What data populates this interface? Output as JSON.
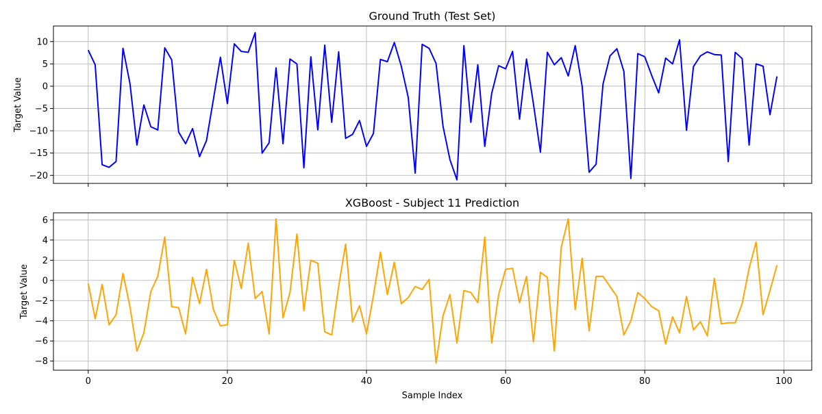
{
  "chart_data": [
    {
      "type": "line",
      "title": "Ground Truth (Test Set)",
      "xlabel": "",
      "ylabel": "Target Value",
      "xlim": [
        -5,
        104
      ],
      "ylim": [
        -21.8,
        13.5
      ],
      "xticks": [
        0,
        20,
        40,
        60,
        80,
        100
      ],
      "xtick_labels_visible": false,
      "yticks": [
        10,
        5,
        0,
        -5,
        -10,
        -15,
        -20
      ],
      "ytick_labels": [
        "10",
        "5",
        "0",
        "−5",
        "−10",
        "−15",
        "−20"
      ],
      "grid": true,
      "color": "#0000ff",
      "x": [
        0,
        1,
        2,
        3,
        4,
        5,
        6,
        7,
        8,
        9,
        10,
        11,
        12,
        13,
        14,
        15,
        16,
        17,
        18,
        19,
        20,
        21,
        22,
        23,
        24,
        25,
        26,
        27,
        28,
        29,
        30,
        31,
        32,
        33,
        34,
        35,
        36,
        37,
        38,
        39,
        40,
        41,
        42,
        43,
        44,
        45,
        46,
        47,
        48,
        49,
        50,
        51,
        52,
        53,
        54,
        55,
        56,
        57,
        58,
        59,
        60,
        61,
        62,
        63,
        64,
        65,
        66,
        67,
        68,
        69,
        70,
        71,
        72,
        73,
        74,
        75,
        76,
        77,
        78,
        79,
        80,
        81,
        82,
        83,
        84,
        85,
        86,
        87,
        88,
        89,
        90,
        91,
        92,
        93,
        94,
        95,
        96,
        97,
        98,
        99
      ],
      "values": [
        8.1,
        4.8,
        -17.6,
        -18.2,
        -16.9,
        8.5,
        0.6,
        -13.2,
        -4.2,
        -9.1,
        -9.8,
        8.6,
        5.9,
        -10.3,
        -12.9,
        -9.5,
        -15.8,
        -12.2,
        -2.9,
        6.5,
        -3.9,
        9.5,
        7.8,
        7.6,
        12.0,
        -15.0,
        -12.7,
        4.1,
        -12.9,
        6.1,
        5.0,
        -18.3,
        6.6,
        -9.8,
        9.2,
        -8.1,
        7.7,
        -11.7,
        -10.8,
        -7.7,
        -13.5,
        -10.6,
        6.0,
        5.5,
        9.8,
        4.5,
        -2.5,
        -19.5,
        9.4,
        8.5,
        5.1,
        -9.0,
        -16.5,
        -21.0,
        9.1,
        -8.1,
        4.8,
        -13.5,
        -1.6,
        4.6,
        3.9,
        7.8,
        -7.4,
        6.1,
        -4.0,
        -14.8,
        7.6,
        4.8,
        6.4,
        2.3,
        9.1,
        0.0,
        -19.3,
        -17.5,
        0.5,
        6.8,
        8.4,
        3.3,
        -20.7,
        7.3,
        6.6,
        2.4,
        -1.5,
        6.3,
        5.0,
        10.4,
        -9.9,
        4.4,
        6.8,
        7.7,
        7.1,
        7.0,
        -16.9,
        7.6,
        6.2,
        -13.2,
        5.0,
        4.5,
        -6.4,
        2.2
      ]
    },
    {
      "type": "line",
      "title": "XGBoost - Subject 11 Prediction",
      "xlabel": "Sample Index",
      "ylabel": "Target Value",
      "xlim": [
        -5,
        104
      ],
      "ylim": [
        -8.9,
        6.7
      ],
      "xticks": [
        0,
        20,
        40,
        60,
        80,
        100
      ],
      "xtick_labels": [
        "0",
        "20",
        "40",
        "60",
        "80",
        "100"
      ],
      "yticks": [
        6,
        4,
        2,
        0,
        -2,
        -4,
        -6,
        -8
      ],
      "ytick_labels": [
        "6",
        "4",
        "2",
        "0",
        "−2",
        "−4",
        "−6",
        "−8"
      ],
      "grid": true,
      "color": "#ffa500",
      "x": [
        0,
        1,
        2,
        3,
        4,
        5,
        6,
        7,
        8,
        9,
        10,
        11,
        12,
        13,
        14,
        15,
        16,
        17,
        18,
        19,
        20,
        21,
        22,
        23,
        24,
        25,
        26,
        27,
        28,
        29,
        30,
        31,
        32,
        33,
        34,
        35,
        36,
        37,
        38,
        39,
        40,
        41,
        42,
        43,
        44,
        45,
        46,
        47,
        48,
        49,
        50,
        51,
        52,
        53,
        54,
        55,
        56,
        57,
        58,
        59,
        60,
        61,
        62,
        63,
        64,
        65,
        66,
        67,
        68,
        69,
        70,
        71,
        72,
        73,
        74,
        75,
        76,
        77,
        78,
        79,
        80,
        81,
        82,
        83,
        84,
        85,
        86,
        87,
        88,
        89,
        90,
        91,
        92,
        93,
        94,
        95,
        96,
        97,
        98,
        99
      ],
      "values": [
        -0.3,
        -3.8,
        -0.4,
        -4.4,
        -3.4,
        0.7,
        -2.6,
        -7.0,
        -5.2,
        -1.1,
        0.4,
        4.3,
        -2.6,
        -2.7,
        -5.3,
        0.3,
        -2.3,
        1.1,
        -2.9,
        -4.5,
        -4.4,
        2.0,
        -0.8,
        3.7,
        -1.8,
        -1.1,
        -5.3,
        6.1,
        -3.7,
        -1.2,
        4.6,
        -3.0,
        2.0,
        1.7,
        -5.1,
        -5.4,
        -0.6,
        3.6,
        -4.1,
        -2.5,
        -5.3,
        -1.5,
        2.8,
        -1.4,
        1.8,
        -2.3,
        -1.7,
        -0.6,
        -0.9,
        0.1,
        -8.2,
        -3.5,
        -1.4,
        -6.2,
        -1.0,
        -1.2,
        -2.2,
        4.3,
        -6.2,
        -1.4,
        1.1,
        1.2,
        -2.2,
        0.4,
        -6.1,
        0.8,
        0.3,
        -7.0,
        3.3,
        6.1,
        -2.9,
        2.2,
        -5.0,
        0.4,
        0.4,
        -0.6,
        -1.6,
        -5.4,
        -4.0,
        -1.2,
        -1.8,
        -2.6,
        -3.0,
        -6.3,
        -3.6,
        -5.2,
        -1.6,
        -4.9,
        -4.1,
        -5.5,
        0.2,
        -4.3,
        -4.2,
        -4.2,
        -2.3,
        1.2,
        3.8,
        -3.4,
        -1.0,
        1.5
      ]
    }
  ]
}
